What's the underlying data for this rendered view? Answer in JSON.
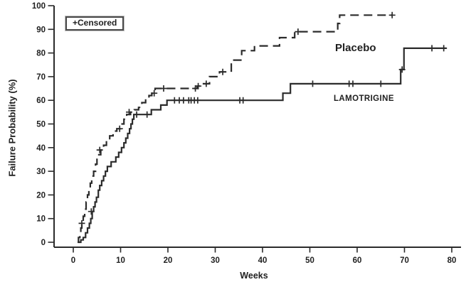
{
  "legend": {
    "censored_label": "+Censored"
  },
  "chart_data": {
    "type": "line",
    "subtype": "kaplan-meier-step",
    "title": "",
    "xlabel": "Weeks",
    "ylabel": "Failure Probability (%)",
    "xlim": [
      0,
      80
    ],
    "ylim": [
      0,
      100
    ],
    "x_ticks": [
      0,
      10,
      20,
      30,
      40,
      50,
      60,
      70,
      80
    ],
    "y_ticks": [
      0,
      10,
      20,
      30,
      40,
      50,
      60,
      70,
      80,
      90,
      100
    ],
    "grid": false,
    "legend_position": "top-left",
    "axis_color": "#2b2b2b",
    "censor_marker": "+",
    "series": [
      {
        "name": "Placebo",
        "label": "Placebo",
        "line_style": "dashed",
        "color": "#2b2b2b",
        "steps": [
          [
            0.9,
            0
          ],
          [
            1.1,
            2
          ],
          [
            1.4,
            4
          ],
          [
            1.6,
            6
          ],
          [
            1.8,
            8
          ],
          [
            2.1,
            11
          ],
          [
            2.4,
            14
          ],
          [
            2.7,
            17
          ],
          [
            3.0,
            20
          ],
          [
            3.3,
            22
          ],
          [
            3.6,
            25
          ],
          [
            3.9,
            28
          ],
          [
            4.3,
            30
          ],
          [
            4.7,
            33
          ],
          [
            5.0,
            35
          ],
          [
            5.4,
            37
          ],
          [
            5.8,
            39
          ],
          [
            6.4,
            41
          ],
          [
            7.0,
            43
          ],
          [
            7.7,
            45
          ],
          [
            8.4,
            47
          ],
          [
            9.2,
            48
          ],
          [
            10.0,
            50
          ],
          [
            10.7,
            52
          ],
          [
            11.3,
            54
          ],
          [
            12.1,
            55
          ],
          [
            12.9,
            56
          ],
          [
            13.8,
            57
          ],
          [
            14.5,
            59
          ],
          [
            15.3,
            61
          ],
          [
            16.0,
            62
          ],
          [
            16.6,
            63
          ],
          [
            17.3,
            65
          ],
          [
            26.2,
            66
          ],
          [
            26.9,
            67
          ],
          [
            28.8,
            70
          ],
          [
            30.9,
            72
          ],
          [
            33.4,
            77
          ],
          [
            35.6,
            81
          ],
          [
            38.3,
            83
          ],
          [
            43.6,
            86.5
          ],
          [
            46.8,
            89
          ],
          [
            55.9,
            92.5
          ],
          [
            56.3,
            96
          ]
        ],
        "end_week": 67.5,
        "censors": [
          [
            1.8,
            8
          ],
          [
            5.6,
            39
          ],
          [
            9.8,
            48
          ],
          [
            11.8,
            55
          ],
          [
            17.1,
            63
          ],
          [
            19.1,
            65
          ],
          [
            25.8,
            65
          ],
          [
            26.4,
            66
          ],
          [
            28.1,
            67
          ],
          [
            31.6,
            72
          ],
          [
            47.5,
            89
          ],
          [
            67.4,
            96
          ]
        ]
      },
      {
        "name": "LAMOTRIGINE",
        "label": "LAMOTRIGINE",
        "line_style": "solid",
        "color": "#2b2b2b",
        "steps": [
          [
            1.2,
            0
          ],
          [
            1.6,
            1
          ],
          [
            2.1,
            2
          ],
          [
            2.6,
            4
          ],
          [
            3.0,
            6
          ],
          [
            3.4,
            8
          ],
          [
            3.7,
            10
          ],
          [
            4.0,
            13
          ],
          [
            4.3,
            15
          ],
          [
            4.6,
            17
          ],
          [
            4.9,
            19
          ],
          [
            5.3,
            22
          ],
          [
            5.6,
            24
          ],
          [
            6.0,
            26
          ],
          [
            6.4,
            28
          ],
          [
            6.8,
            30
          ],
          [
            7.2,
            32
          ],
          [
            8.0,
            34
          ],
          [
            9.0,
            36
          ],
          [
            9.6,
            38
          ],
          [
            10.2,
            40
          ],
          [
            10.7,
            42
          ],
          [
            11.1,
            44
          ],
          [
            11.5,
            46
          ],
          [
            11.9,
            48
          ],
          [
            12.2,
            50
          ],
          [
            12.5,
            52
          ],
          [
            12.8,
            54
          ],
          [
            16.5,
            56
          ],
          [
            18.5,
            58
          ],
          [
            19.8,
            60
          ],
          [
            44.3,
            63
          ],
          [
            45.9,
            67
          ],
          [
            69.2,
            73
          ],
          [
            69.9,
            82
          ]
        ],
        "end_week": 78.9,
        "censors": [
          [
            3.8,
            13
          ],
          [
            13.4,
            54
          ],
          [
            15.6,
            54
          ],
          [
            21.4,
            60
          ],
          [
            22.4,
            60
          ],
          [
            23.3,
            60
          ],
          [
            24.4,
            60
          ],
          [
            24.9,
            60
          ],
          [
            25.6,
            60
          ],
          [
            26.3,
            60
          ],
          [
            35.2,
            60
          ],
          [
            35.9,
            60
          ],
          [
            50.6,
            67
          ],
          [
            58.3,
            67
          ],
          [
            59.1,
            67
          ],
          [
            65.0,
            67
          ],
          [
            69.5,
            73
          ],
          [
            75.8,
            82
          ],
          [
            78.3,
            82
          ]
        ]
      }
    ]
  }
}
